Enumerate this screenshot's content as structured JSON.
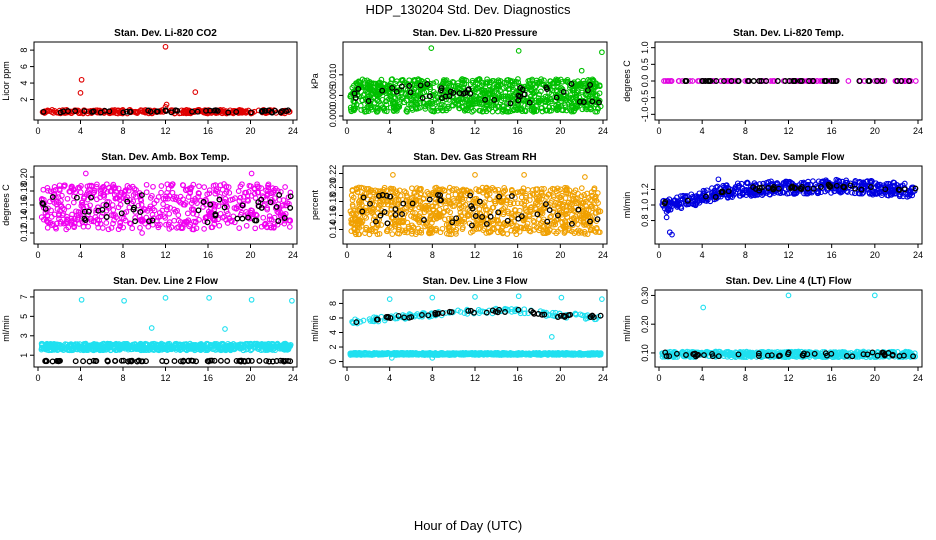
{
  "figure": {
    "title": "HDP_130204  Std. Dev. Diagnostics",
    "xlabel": "Hour of Day (UTC)"
  },
  "chart_data": [
    {
      "type": "scatter",
      "title": "Stan. Dev. Li-820 CO2",
      "ylabel": "Licor ppm",
      "xlim": [
        0,
        24
      ],
      "ylim": [
        0,
        8.5
      ],
      "xticks": [
        0,
        4,
        8,
        12,
        16,
        20,
        24
      ],
      "yticks": [
        {
          "v": 2,
          "label": "2"
        },
        {
          "v": 4,
          "label": "4"
        },
        {
          "v": 6,
          "label": "6"
        },
        {
          "v": 8,
          "label": "8"
        }
      ],
      "color": "#e00000",
      "series": [
        {
          "band": [
            0.3,
            0.75
          ],
          "points_per_hour": 12
        },
        {
          "outliers": [
            [
              4.1,
              4.4
            ],
            [
              4.0,
              2.8
            ],
            [
              12.0,
              8.4
            ],
            [
              12.1,
              1.4
            ],
            [
              12.0,
              1.1
            ],
            [
              14.8,
              2.9
            ]
          ]
        }
      ],
      "black_series": {
        "band": [
          0.4,
          0.7
        ],
        "points_per_hour": 2
      }
    },
    {
      "type": "scatter",
      "title": "Stan. Dev. Li-820 Pressure",
      "ylabel": "kPa",
      "xlim": [
        0,
        24
      ],
      "ylim": [
        0,
        0.017
      ],
      "xticks": [
        0,
        4,
        8,
        12,
        16,
        20,
        24
      ],
      "yticks": [
        {
          "v": 0.0,
          "label": "0.000"
        },
        {
          "v": 0.005,
          "label": "0.005"
        },
        {
          "v": 0.01,
          "label": "0.010"
        }
      ],
      "color": "#00c000",
      "series": [
        {
          "band": [
            0.001,
            0.009
          ],
          "points_per_hour": 40
        },
        {
          "outliers": [
            [
              7.9,
              0.0165
            ],
            [
              16.1,
              0.0158
            ],
            [
              23.9,
              0.0155
            ],
            [
              22.0,
              0.011
            ]
          ]
        }
      ],
      "black_series": {
        "band": [
          0.003,
          0.008
        ],
        "points_per_hour": 2
      }
    },
    {
      "type": "scatter",
      "title": "Stan. Dev. Li-820 Temp.",
      "ylabel": "degrees C",
      "xlim": [
        0,
        24
      ],
      "ylim": [
        -1.05,
        1.05
      ],
      "xticks": [
        0,
        4,
        8,
        12,
        16,
        20,
        24
      ],
      "yticks": [
        {
          "v": -1.0,
          "label": "-1.0"
        },
        {
          "v": -0.5,
          "label": "-0.5"
        },
        {
          "v": 0.0,
          "label": "0.0"
        },
        {
          "v": 0.5,
          "label": "0.5"
        },
        {
          "v": 1.0,
          "label": "1.0"
        }
      ],
      "color": "#e000e0",
      "series": [
        {
          "band": [
            0.0,
            0.0
          ],
          "points_per_hour": 4
        }
      ],
      "black_series": {
        "band": [
          0.0,
          0.0
        ],
        "points_per_hour": 2
      }
    },
    {
      "type": "scatter",
      "title": "Stan. Dev. Amb. Box Temp.",
      "ylabel": "degrees C",
      "xlim": [
        0,
        24
      ],
      "ylim": [
        0.11,
        0.21
      ],
      "xticks": [
        0,
        4,
        8,
        12,
        16,
        20,
        24
      ],
      "yticks": [
        {
          "v": 0.12,
          "label": "0.12"
        },
        {
          "v": 0.14,
          "label": "0.14"
        },
        {
          "v": 0.16,
          "label": "0.16"
        },
        {
          "v": 0.18,
          "label": "0.18"
        },
        {
          "v": 0.2,
          "label": "0.20"
        }
      ],
      "color": "#f000f0",
      "series": [
        {
          "band": [
            0.125,
            0.19
          ],
          "points_per_hour": 25
        },
        {
          "outliers": [
            [
              4.5,
              0.205
            ],
            [
              20.1,
              0.205
            ],
            [
              9.8,
              0.12
            ]
          ]
        }
      ],
      "black_series": {
        "band": [
          0.135,
          0.175
        ],
        "points_per_hour": 2
      }
    },
    {
      "type": "scatter",
      "title": "Stan. Dev. Gas Stream RH",
      "ylabel": "percent",
      "xlim": [
        0,
        24
      ],
      "ylim": [
        0.125,
        0.225
      ],
      "xticks": [
        0,
        4,
        8,
        12,
        16,
        20,
        24
      ],
      "yticks": [
        {
          "v": 0.14,
          "label": "0.14"
        },
        {
          "v": 0.16,
          "label": "0.16"
        },
        {
          "v": 0.18,
          "label": "0.18"
        },
        {
          "v": 0.2,
          "label": "0.20"
        },
        {
          "v": 0.22,
          "label": "0.22"
        }
      ],
      "color": "#f0a000",
      "series": [
        {
          "band": [
            0.133,
            0.2
          ],
          "points_per_hour": 40
        },
        {
          "outliers": [
            [
              4.3,
              0.218
            ],
            [
              12.0,
              0.218
            ],
            [
              16.6,
              0.218
            ],
            [
              22.3,
              0.215
            ]
          ]
        }
      ],
      "black_series": {
        "band": [
          0.145,
          0.19
        ],
        "points_per_hour": 2
      }
    },
    {
      "type": "scatter",
      "title": "Stan. Dev. Sample Flow",
      "ylabel": "ml/min",
      "xlim": [
        0,
        24
      ],
      "ylim": [
        0.55,
        1.45
      ],
      "xticks": [
        0,
        4,
        8,
        12,
        16,
        20,
        24
      ],
      "yticks": [
        {
          "v": 0.8,
          "label": "0.8"
        },
        {
          "v": 1.0,
          "label": "1.0"
        },
        {
          "v": 1.2,
          "label": "1.2"
        }
      ],
      "color": "#0000e0",
      "series": [
        {
          "curve": [
            [
              0,
              0.98
            ],
            [
              2,
              1.03
            ],
            [
              4,
              1.1
            ],
            [
              6,
              1.17
            ],
            [
              8,
              1.2
            ],
            [
              12,
              1.23
            ],
            [
              16,
              1.24
            ],
            [
              20,
              1.22
            ],
            [
              24,
              1.18
            ]
          ],
          "spread": 0.09,
          "points_per_hour": 22
        },
        {
          "outliers": [
            [
              1.0,
              0.65
            ],
            [
              1.2,
              0.62
            ],
            [
              0.7,
              0.84
            ],
            [
              5.5,
              1.33
            ]
          ]
        }
      ],
      "black_series": {
        "curve": [
          [
            0,
            1.0
          ],
          [
            4,
            1.1
          ],
          [
            8,
            1.2
          ],
          [
            12,
            1.22
          ],
          [
            16,
            1.24
          ],
          [
            20,
            1.22
          ],
          [
            24,
            1.18
          ]
        ],
        "spread": 0.03,
        "points_per_hour": 2
      }
    },
    {
      "type": "scatter",
      "title": "Stan. Dev. Line 2 Flow",
      "ylabel": "ml/min",
      "xlim": [
        0,
        24
      ],
      "ylim": [
        0.2,
        7.3
      ],
      "xticks": [
        0,
        4,
        8,
        12,
        16,
        20,
        24
      ],
      "yticks": [
        {
          "v": 1,
          "label": "1"
        },
        {
          "v": 3,
          "label": "3"
        },
        {
          "v": 5,
          "label": "5"
        },
        {
          "v": 7,
          "label": "7"
        }
      ],
      "color": "#20e0f0",
      "series": [
        {
          "band": [
            1.5,
            2.2
          ],
          "points_per_hour": 30
        },
        {
          "outliers": [
            [
              4.1,
              6.7
            ],
            [
              8.1,
              6.6
            ],
            [
              12.0,
              6.9
            ],
            [
              16.1,
              6.9
            ],
            [
              20.1,
              6.7
            ],
            [
              23.9,
              6.6
            ],
            [
              10.7,
              3.8
            ],
            [
              17.6,
              3.7
            ]
          ]
        }
      ],
      "black_series": {
        "band": [
          0.35,
          0.45
        ],
        "points_per_hour": 3
      }
    },
    {
      "type": "scatter",
      "title": "Stan. Dev. Line 3 Flow",
      "ylabel": "ml/min",
      "xlim": [
        0,
        24
      ],
      "ylim": [
        -0.2,
        9.3
      ],
      "xticks": [
        0,
        4,
        8,
        12,
        16,
        20,
        24
      ],
      "yticks": [
        {
          "v": 0,
          "label": "0"
        },
        {
          "v": 2,
          "label": "2"
        },
        {
          "v": 4,
          "label": "4"
        },
        {
          "v": 6,
          "label": "6"
        },
        {
          "v": 8,
          "label": "8"
        }
      ],
      "color": "#20e0f0",
      "series": [
        {
          "band": [
            0.9,
            1.2
          ],
          "points_per_hour": 30
        },
        {
          "curve": [
            [
              0,
              5.4
            ],
            [
              4,
              6.0
            ],
            [
              8,
              6.5
            ],
            [
              12,
              6.9
            ],
            [
              16,
              7.0
            ],
            [
              20,
              6.4
            ],
            [
              24,
              6.1
            ]
          ],
          "spread": 0.35,
          "points_per_hour": 6
        },
        {
          "outliers": [
            [
              4.0,
              8.6
            ],
            [
              8.0,
              8.8
            ],
            [
              12.0,
              8.9
            ],
            [
              16.1,
              9.0
            ],
            [
              20.1,
              8.8
            ],
            [
              23.9,
              8.6
            ],
            [
              19.2,
              3.4
            ],
            [
              4.2,
              0.5
            ],
            [
              8.0,
              0.5
            ]
          ]
        }
      ],
      "black_series": {
        "curve": [
          [
            0,
            5.4
          ],
          [
            4,
            6.0
          ],
          [
            8,
            6.5
          ],
          [
            12,
            6.9
          ],
          [
            16,
            7.0
          ],
          [
            20,
            6.3
          ],
          [
            24,
            6.1
          ]
        ],
        "spread": 0.2,
        "points_per_hour": 2
      }
    },
    {
      "type": "scatter",
      "title": "Stan. Dev. Line 4 (LT) Flow",
      "ylabel": "ml/min",
      "xlim": [
        0,
        24
      ],
      "ylim": [
        0.065,
        0.305
      ],
      "xticks": [
        0,
        4,
        8,
        12,
        16,
        20,
        24
      ],
      "yticks": [
        {
          "v": 0.1,
          "label": "0.10"
        },
        {
          "v": 0.2,
          "label": "0.20"
        },
        {
          "v": 0.3,
          "label": "0.30"
        }
      ],
      "color": "#20e0f0",
      "series": [
        {
          "band": [
            0.085,
            0.105
          ],
          "points_per_hour": 25
        },
        {
          "outliers": [
            [
              4.1,
              0.258
            ],
            [
              12.0,
              0.3
            ],
            [
              20.0,
              0.3
            ]
          ]
        }
      ],
      "black_series": {
        "band": [
          0.088,
          0.102
        ],
        "points_per_hour": 2
      }
    }
  ]
}
